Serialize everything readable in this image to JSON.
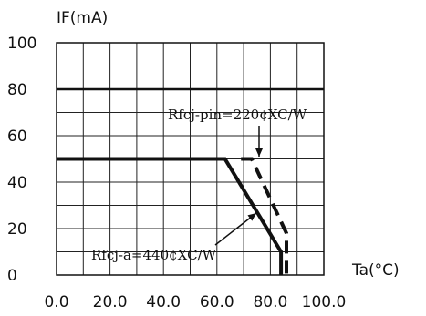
{
  "chart_data": {
    "type": "line",
    "title": "",
    "xlabel": "Ta(°C)",
    "ylabel": "IF(mA)",
    "xlim": [
      0,
      100
    ],
    "ylim": [
      0,
      100
    ],
    "grid": true,
    "x_ticks": [
      0,
      10,
      20,
      30,
      40,
      50,
      60,
      70,
      80,
      90,
      100
    ],
    "x_tick_labels": [
      "0.0",
      "20.0",
      "40.0",
      "60.0",
      "80.0",
      "100.0"
    ],
    "y_tick_labels": [
      "0",
      "20",
      "40",
      "60",
      "80",
      "100"
    ],
    "series": [
      {
        "name": "Rfcj-a=440¢XC/W",
        "style": "solid",
        "x": [
          0,
          63,
          84,
          84
        ],
        "y": [
          50,
          50,
          10,
          0
        ]
      },
      {
        "name": "Rfcj-pin=220¢XC/W",
        "style": "dashed",
        "x": [
          69,
          73,
          86,
          86
        ],
        "y": [
          50,
          50,
          18,
          0
        ]
      }
    ],
    "reference_line": {
      "y": 80
    },
    "annotations": [
      {
        "text": "Rfcj-pin=220¢XC/W",
        "target_series": 1
      },
      {
        "text": "Rfcj-a=440¢XC/W",
        "target_series": 0
      }
    ]
  }
}
